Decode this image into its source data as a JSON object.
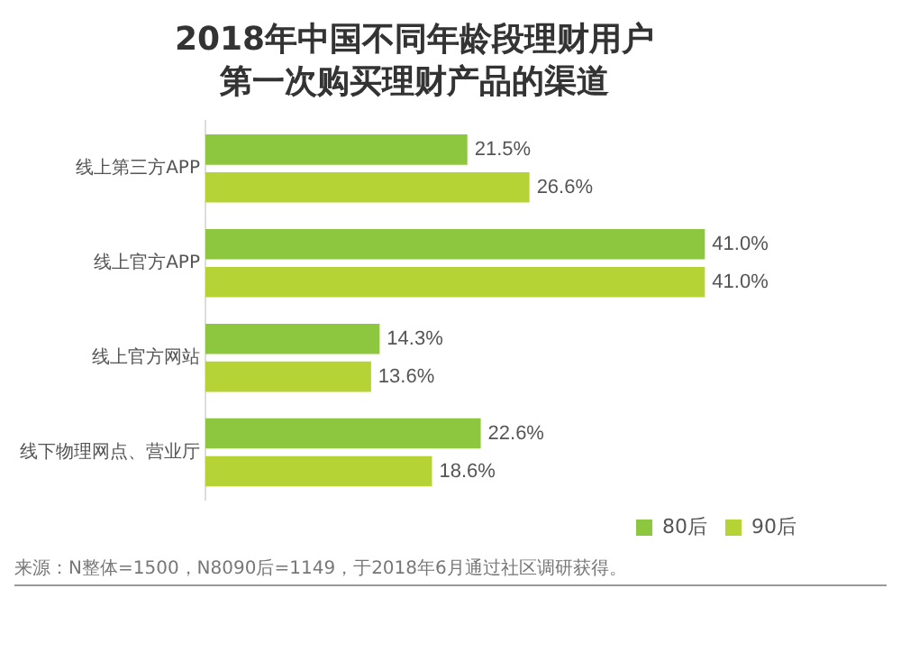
{
  "chart_data": {
    "type": "bar",
    "orientation": "horizontal",
    "title": "2018年中国不同年龄段理财用户",
    "subtitle": "第一次购买理财产品的渠道",
    "categories": [
      "线上第三方APP",
      "线上官方APP",
      "线上官方网站",
      "线下物理网点、营业厅"
    ],
    "series": [
      {
        "name": "80后",
        "color": "#8dc63f",
        "values": [
          21.5,
          41.0,
          14.3,
          22.6
        ],
        "value_labels": [
          "21.5%",
          "41.0%",
          "14.3%",
          "22.6%"
        ]
      },
      {
        "name": "90后",
        "color": "#b5d334",
        "values": [
          26.6,
          41.0,
          13.6,
          18.6
        ],
        "value_labels": [
          "26.6%",
          "41.0%",
          "13.6%",
          "18.6%"
        ]
      }
    ],
    "legend": "bottom right",
    "grid": false,
    "annotations": [
      "来源：N整体=1500，N8090后=1149，于2018年6月通过社区调研获得。"
    ]
  }
}
